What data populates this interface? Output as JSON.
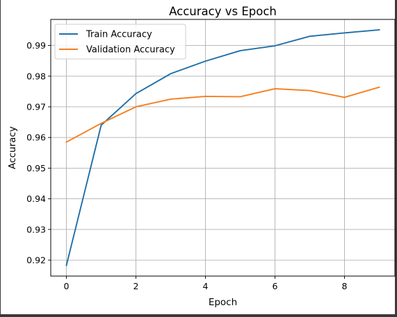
{
  "chart_data": {
    "type": "line",
    "title": "Accuracy vs Epoch",
    "xlabel": "Epoch",
    "ylabel": "Accuracy",
    "xlim": [
      -0.45,
      9.45
    ],
    "ylim": [
      0.9148,
      0.9985
    ],
    "xticks": [
      0,
      2,
      4,
      6,
      8
    ],
    "yticks": [
      0.92,
      0.93,
      0.94,
      0.95,
      0.96,
      0.97,
      0.98,
      0.99
    ],
    "grid": true,
    "legend_position": "top-left",
    "x": [
      0,
      1,
      2,
      3,
      4,
      5,
      6,
      7,
      8,
      9
    ],
    "series": [
      {
        "name": "Train Accuracy",
        "color": "#1f6ea8",
        "values": [
          0.9183,
          0.964,
          0.9743,
          0.9808,
          0.9849,
          0.9883,
          0.9899,
          0.993,
          0.9941,
          0.9951
        ]
      },
      {
        "name": "Validation Accuracy",
        "color": "#f57f1f",
        "values": [
          0.9585,
          0.9646,
          0.97,
          0.9725,
          0.9734,
          0.9733,
          0.9759,
          0.9753,
          0.9731,
          0.9764
        ]
      }
    ]
  }
}
